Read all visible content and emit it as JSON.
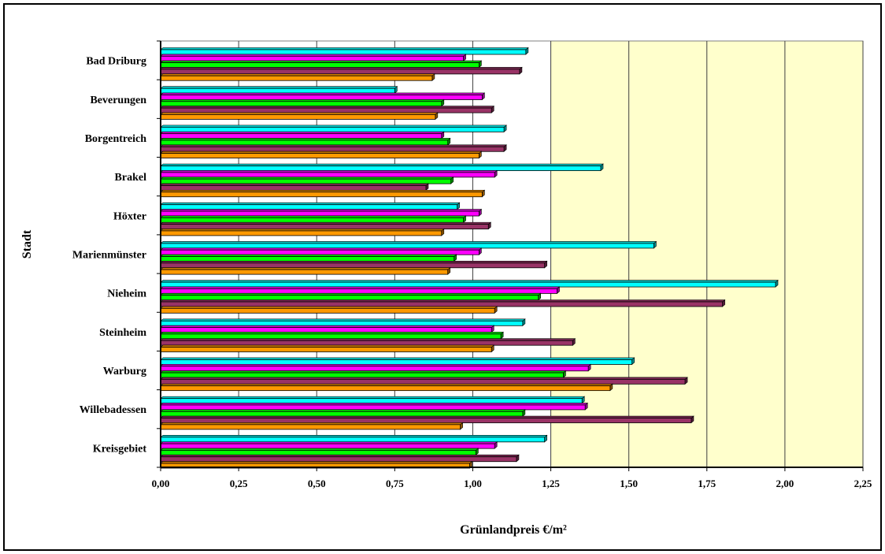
{
  "chart_data": {
    "type": "bar",
    "orientation": "horizontal",
    "categories": [
      "Bad Driburg",
      "Beverungen",
      "Borgentreich",
      "Brakel",
      "Höxter",
      "Marienmünster",
      "Nieheim",
      "Steinheim",
      "Warburg",
      "Willebadessen",
      "Kreisgebiet"
    ],
    "series": [
      {
        "color": "#00FFFF",
        "values": [
          1.17,
          0.75,
          1.1,
          1.41,
          0.95,
          1.58,
          1.97,
          1.16,
          1.51,
          1.35,
          1.23
        ]
      },
      {
        "color": "#FF00FF",
        "values": [
          0.97,
          1.03,
          0.9,
          1.07,
          1.02,
          1.02,
          1.27,
          1.06,
          1.37,
          1.36,
          1.07
        ]
      },
      {
        "color": "#00FF00",
        "values": [
          1.02,
          0.9,
          0.92,
          0.93,
          0.97,
          0.94,
          1.21,
          1.09,
          1.29,
          1.16,
          1.01
        ]
      },
      {
        "color": "#993366",
        "values": [
          1.15,
          1.06,
          1.1,
          0.85,
          1.05,
          1.23,
          1.8,
          1.32,
          1.68,
          1.7,
          1.14
        ]
      },
      {
        "color": "#FF9900",
        "values": [
          0.87,
          0.88,
          1.02,
          1.03,
          0.9,
          0.92,
          1.07,
          1.06,
          1.44,
          0.96,
          0.99
        ]
      }
    ],
    "xlim": [
      0,
      2.25
    ],
    "xticks": [
      "0,00",
      "0,25",
      "0,50",
      "0,75",
      "1,00",
      "1,25",
      "1,50",
      "1,75",
      "2,00",
      "2,25"
    ],
    "xlabel": "Grünlandpreis €/m²",
    "ylabel": "Stadt",
    "plot_background": "#FFFFCC",
    "gridlines": "vertical",
    "legend": "none"
  }
}
